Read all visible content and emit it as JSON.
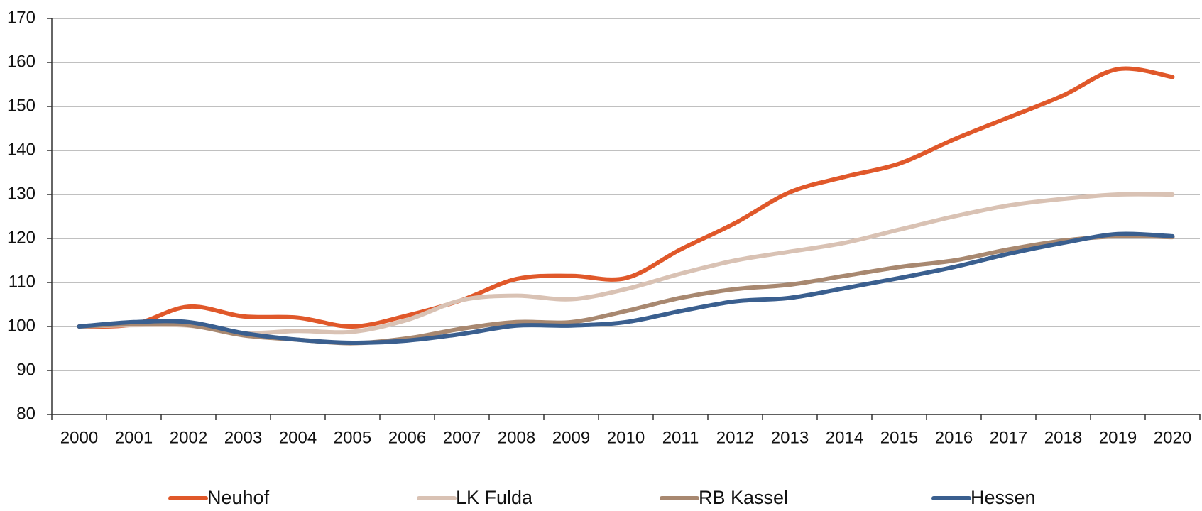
{
  "chart_data": {
    "type": "line",
    "categories": [
      "2000",
      "2001",
      "2002",
      "2003",
      "2004",
      "2005",
      "2006",
      "2007",
      "2008",
      "2009",
      "2010",
      "2011",
      "2012",
      "2013",
      "2014",
      "2015",
      "2016",
      "2017",
      "2018",
      "2019",
      "2020"
    ],
    "series": [
      {
        "name": "Neuhof",
        "color": "#e0582a",
        "values": [
          100,
          100.5,
          104.5,
          102.3,
          102,
          100,
          102.5,
          106,
          110.8,
          111.5,
          111,
          117.5,
          123.5,
          130.5,
          134,
          137,
          142.5,
          147.5,
          152.5,
          158.5,
          156.7
        ]
      },
      {
        "name": "LK Fulda",
        "color": "#d9c2b4",
        "values": [
          100,
          100.3,
          100.2,
          98.5,
          99,
          98.8,
          101.5,
          106,
          107,
          106.2,
          108.5,
          112,
          115,
          117,
          119,
          122,
          125,
          127.5,
          129,
          130,
          130
        ]
      },
      {
        "name": "RB Kassel",
        "color": "#a88870",
        "values": [
          100,
          100.5,
          100.3,
          98,
          97,
          96.2,
          97.3,
          99.5,
          101,
          101,
          103.5,
          106.5,
          108.5,
          109.5,
          111.5,
          113.5,
          115,
          117.5,
          119.5,
          120.5,
          120.3
        ]
      },
      {
        "name": "Hessen",
        "color": "#3a5f8f",
        "values": [
          100,
          101,
          101,
          98.5,
          97,
          96.3,
          96.8,
          98.3,
          100.2,
          100.2,
          101,
          103.5,
          105.7,
          106.5,
          108.7,
          111,
          113.5,
          116.5,
          119,
          121,
          120.5
        ]
      }
    ],
    "ylim": [
      80,
      170
    ],
    "yticks": [
      80,
      90,
      100,
      110,
      120,
      130,
      140,
      150,
      160,
      170
    ],
    "grid": true,
    "legend": "bottom"
  }
}
